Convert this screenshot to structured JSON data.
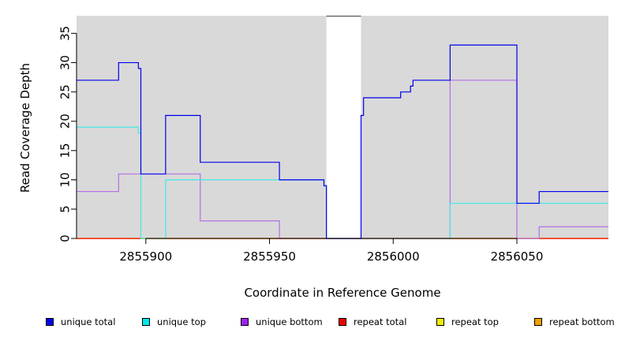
{
  "chart_data": {
    "type": "line",
    "step": true,
    "xlabel": "Coordinate in Reference Genome",
    "ylabel": "Read Coverage Depth",
    "xlim": [
      2855872,
      2856087
    ],
    "ylim": [
      0,
      38
    ],
    "x_ticks": [
      2855900,
      2855950,
      2856000,
      2856050
    ],
    "y_ticks": [
      0,
      5,
      10,
      15,
      20,
      25,
      30,
      35
    ],
    "background": "#d9d9d9",
    "gaps": [
      [
        2855973,
        2855987
      ]
    ],
    "series": [
      {
        "name": "unique total",
        "color": "#0000ee",
        "points": [
          [
            2855872,
            27
          ],
          [
            2855889,
            30
          ],
          [
            2855897,
            29
          ],
          [
            2855898,
            11
          ],
          [
            2855908,
            21
          ],
          [
            2855922,
            13
          ],
          [
            2855954,
            10
          ],
          [
            2855972,
            9
          ],
          [
            2855973,
            0
          ],
          [
            2855987,
            21
          ],
          [
            2855988,
            24
          ],
          [
            2856003,
            25
          ],
          [
            2856007,
            26
          ],
          [
            2856008,
            27
          ],
          [
            2856023,
            33
          ],
          [
            2856050,
            6
          ],
          [
            2856059,
            8
          ],
          [
            2856087,
            8
          ]
        ]
      },
      {
        "name": "unique top",
        "color": "#40e8e8",
        "points": [
          [
            2855872,
            19
          ],
          [
            2855897,
            18
          ],
          [
            2855898,
            0
          ],
          [
            2855908,
            10
          ],
          [
            2855972,
            9
          ],
          [
            2855973,
            0
          ],
          [
            2856023,
            6
          ],
          [
            2856087,
            6
          ]
        ]
      },
      {
        "name": "unique bottom",
        "color": "#b46ee6",
        "points": [
          [
            2855872,
            8
          ],
          [
            2855889,
            11
          ],
          [
            2855922,
            3
          ],
          [
            2855954,
            0
          ],
          [
            2856023,
            27
          ],
          [
            2856050,
            0
          ],
          [
            2856059,
            2
          ],
          [
            2856087,
            2
          ]
        ]
      },
      {
        "name": "repeat total",
        "color": "#ee0000",
        "points": [
          [
            2855872,
            0
          ],
          [
            2856087,
            0
          ]
        ]
      },
      {
        "name": "repeat top",
        "color": "#eeee00",
        "points": [
          [
            2855872,
            0
          ],
          [
            2856087,
            0
          ]
        ]
      },
      {
        "name": "repeat bottom",
        "color": "#f0a000",
        "points": [
          [
            2855872,
            0
          ],
          [
            2856087,
            0
          ]
        ]
      }
    ],
    "legend": [
      {
        "label": "unique total",
        "color": "#0000ee"
      },
      {
        "label": "unique top",
        "color": "#00e8e8"
      },
      {
        "label": "unique bottom",
        "color": "#a020f0"
      },
      {
        "label": "repeat total",
        "color": "#ee0000"
      },
      {
        "label": "repeat top",
        "color": "#eeee00"
      },
      {
        "label": "repeat bottom",
        "color": "#f0a000"
      }
    ]
  }
}
